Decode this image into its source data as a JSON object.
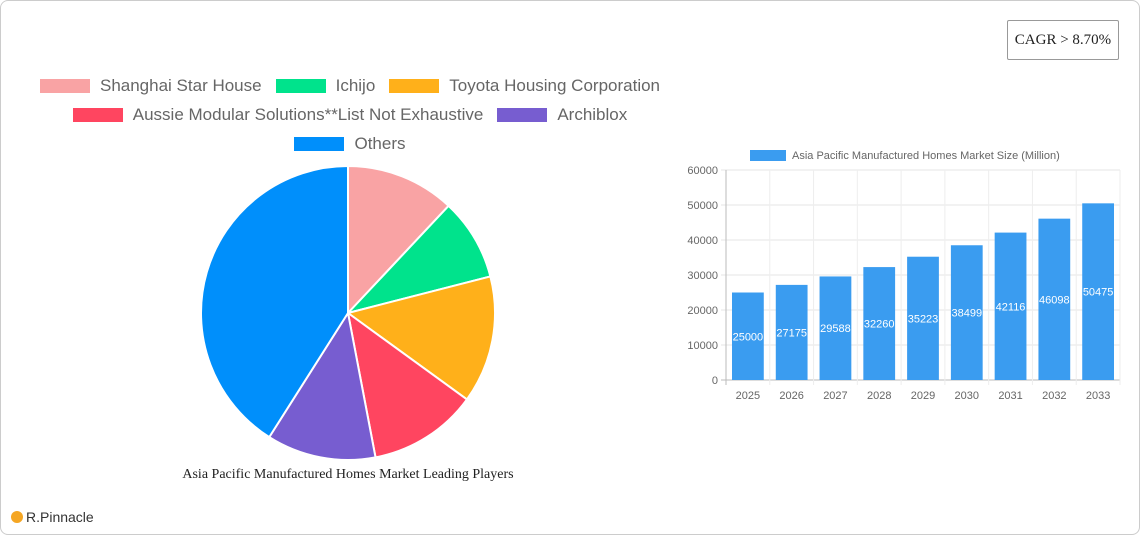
{
  "cagr": "CAGR > 8.70%",
  "logo": "R.Pinnacle",
  "chart_data": [
    {
      "type": "pie",
      "title": "Asia Pacific Manufactured Homes Market Leading Players",
      "legend_placement": "top",
      "slices": [
        {
          "name": "Shanghai Star House",
          "value": 12,
          "color": "#f9a3a4"
        },
        {
          "name": "Ichijo",
          "value": 9,
          "color": "#00e38c"
        },
        {
          "name": "Toyota Housing Corporation",
          "value": 14,
          "color": "#ffb01a"
        },
        {
          "name": "Aussie Modular Solutions**List Not Exhaustive",
          "value": 12,
          "color": "#ff4560"
        },
        {
          "name": "Archiblox",
          "value": 12,
          "color": "#775dd0"
        },
        {
          "name": "Others",
          "value": 41,
          "color": "#008ffb"
        }
      ]
    },
    {
      "type": "bar",
      "legend_placement": "top",
      "grid": true,
      "categories": [
        "2025",
        "2026",
        "2027",
        "2028",
        "2029",
        "2030",
        "2031",
        "2032",
        "2033"
      ],
      "series": [
        {
          "name": "Asia Pacific Manufactured Homes Market Size (Million)",
          "color": "#3a9cf0",
          "values": [
            25000,
            27175,
            29588,
            32260,
            35223,
            38499,
            42116,
            46098,
            50475
          ]
        }
      ],
      "ylim": [
        0,
        60000
      ],
      "yticks": [
        0,
        10000,
        20000,
        30000,
        40000,
        50000,
        60000
      ]
    }
  ]
}
